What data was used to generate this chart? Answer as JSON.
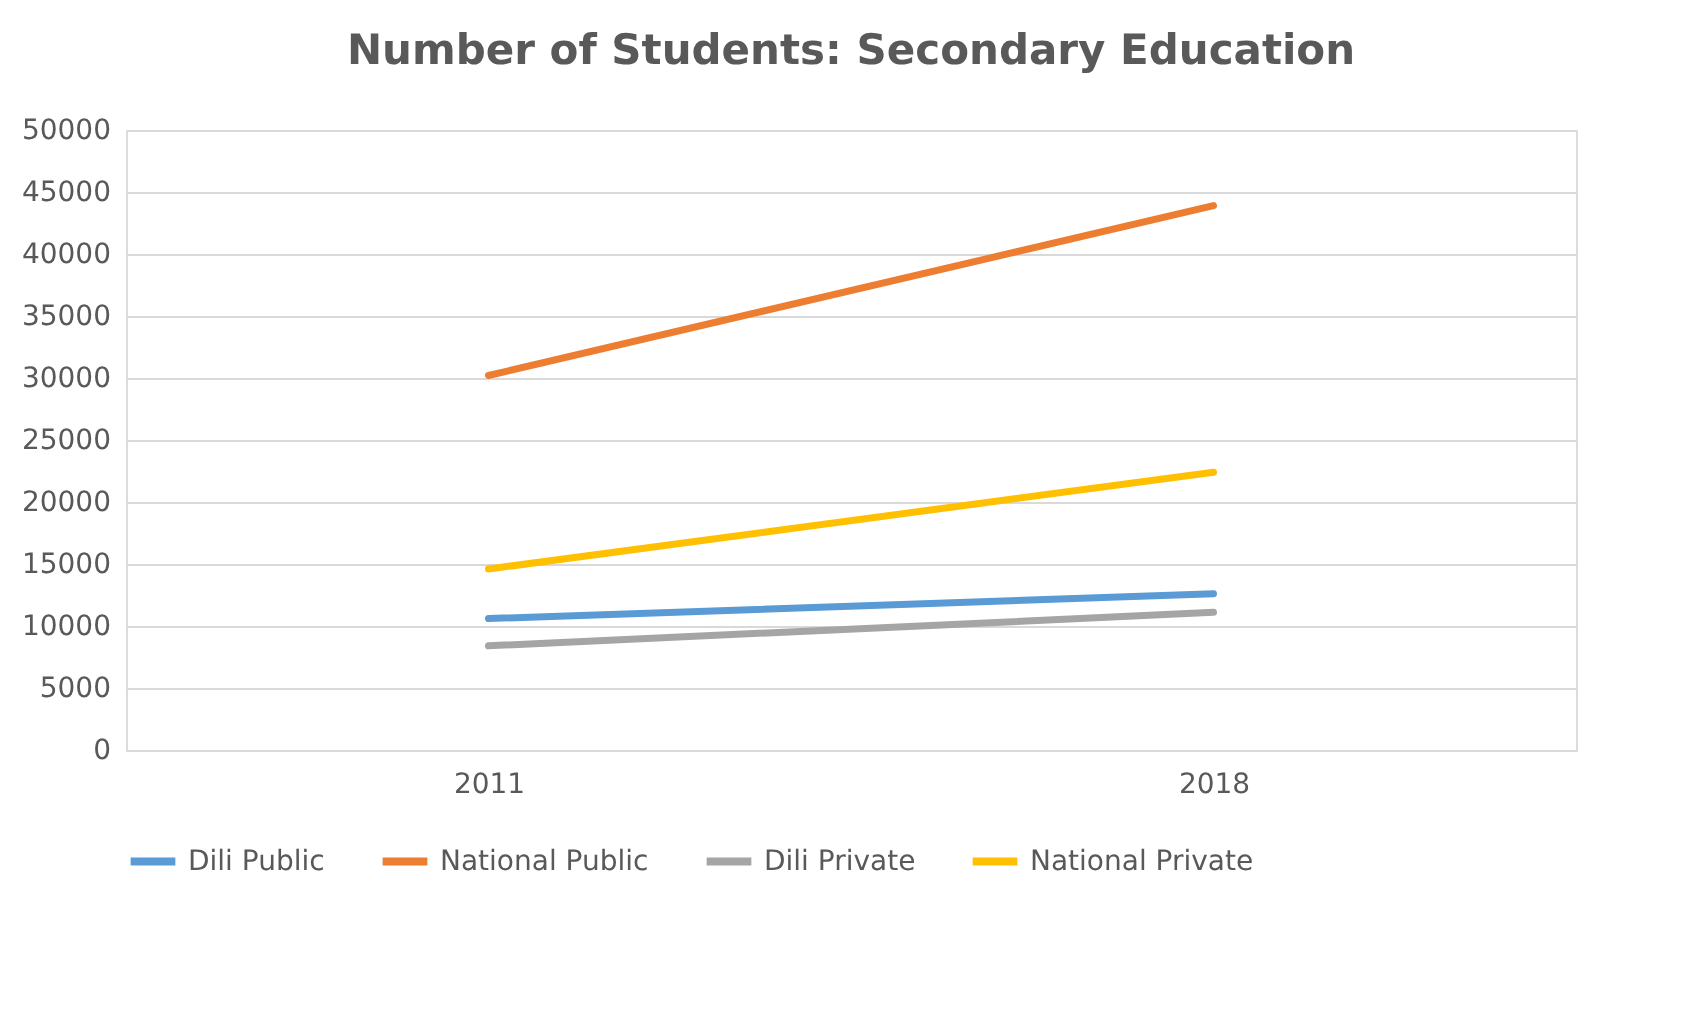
{
  "chart_data": {
    "type": "line",
    "title": "Number of Students: Secondary Education",
    "categories": [
      "2011",
      "2018"
    ],
    "series": [
      {
        "name": "Dili Public",
        "color": "#5b9bd5",
        "values": [
          10600,
          12600
        ]
      },
      {
        "name": "National Public",
        "color": "#ed7d31",
        "values": [
          30200,
          43900
        ]
      },
      {
        "name": "Dili Private",
        "color": "#a5a5a5",
        "values": [
          8400,
          11100
        ]
      },
      {
        "name": "National Private",
        "color": "#ffc000",
        "values": [
          14600,
          22400
        ]
      }
    ],
    "ylim": [
      0,
      50000
    ],
    "yticks": [
      0,
      5000,
      10000,
      15000,
      20000,
      25000,
      30000,
      35000,
      40000,
      45000,
      50000
    ],
    "grid": "y",
    "legend": "bottom",
    "marker": "none",
    "line_style": "solid"
  }
}
